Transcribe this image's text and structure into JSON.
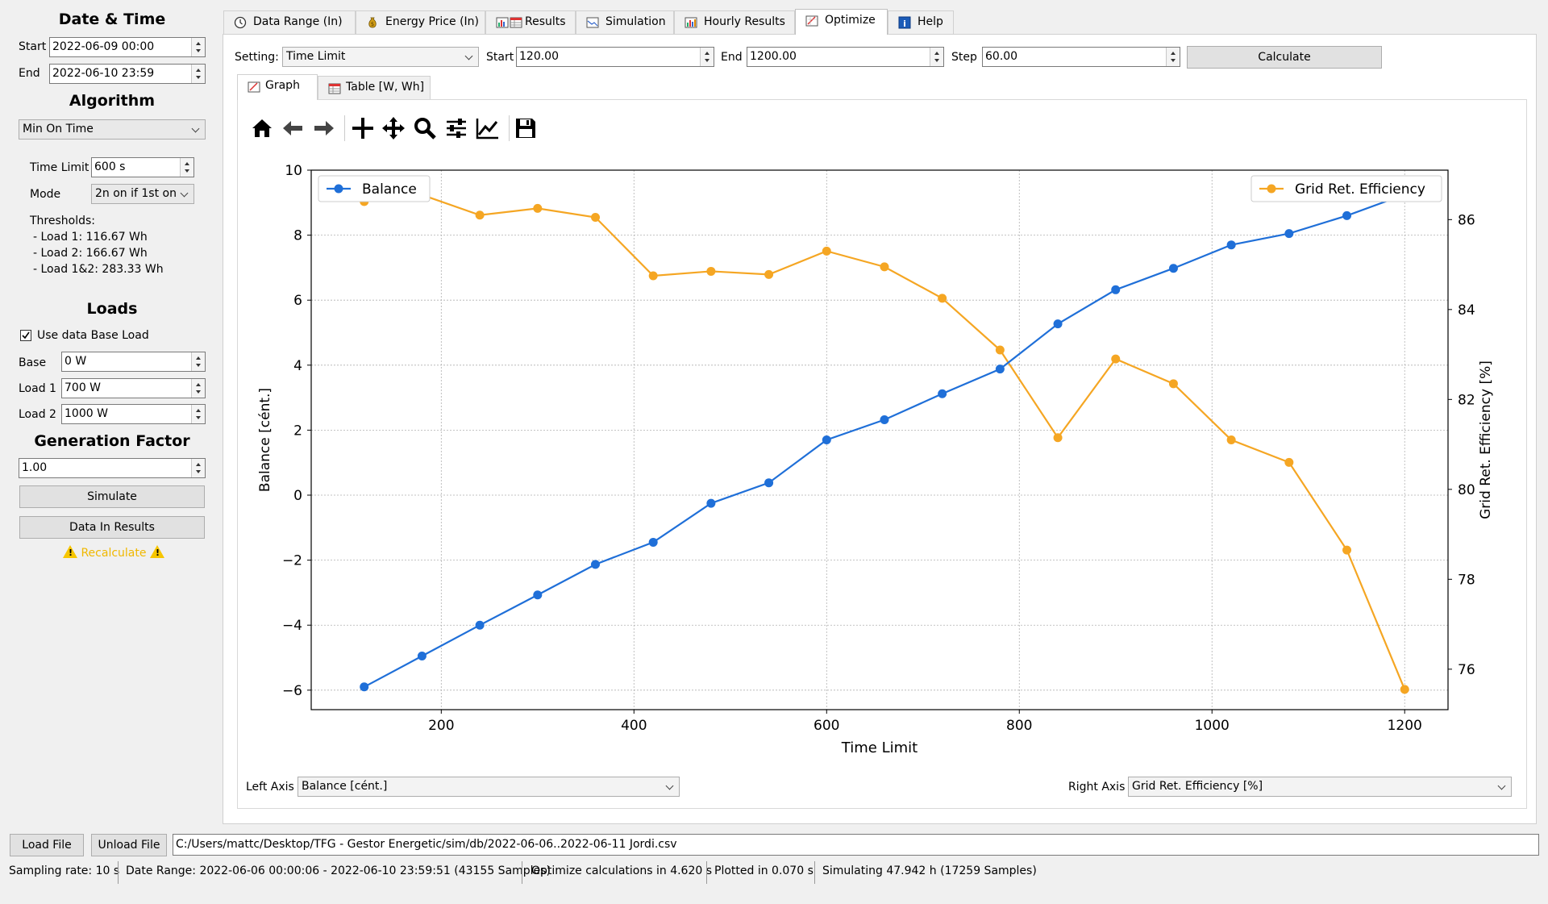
{
  "left": {
    "date_time_title": "Date & Time",
    "start_label": "Start",
    "start_value": "2022-06-09 00:00",
    "end_label": "End",
    "end_value": "2022-06-10 23:59",
    "algorithm_title": "Algorithm",
    "algorithm_value": "Min On Time",
    "time_limit_label": "Time Limit",
    "time_limit_value": "600 s",
    "mode_label": "Mode",
    "mode_value": "2n on if 1st on",
    "thresholds_label": "Thresholds:",
    "thresholds": [
      "- Load 1: 116.67 Wh",
      "- Load 2: 166.67 Wh",
      "- Load 1&2: 283.33 Wh"
    ],
    "loads_title": "Loads",
    "use_base_label": "Use data Base Load",
    "use_base_checked": true,
    "base_label": "Base",
    "base_value": "0 W",
    "load1_label": "Load 1",
    "load1_value": "700 W",
    "load2_label": "Load 2",
    "load2_value": "1000 W",
    "gen_factor_title": "Generation Factor",
    "gen_factor_value": "1.00",
    "simulate_button": "Simulate",
    "data_in_results_button": "Data In Results",
    "recalculate_warning": "Recalculate"
  },
  "tabs": [
    {
      "label": "Data Range (In)",
      "icon": "clock-icon"
    },
    {
      "label": "Energy Price (In)",
      "icon": "money-bag-icon"
    },
    {
      "label": "Results",
      "icon": "chart-table-icon"
    },
    {
      "label": "Simulation",
      "icon": "line-chart-icon"
    },
    {
      "label": "Hourly Results",
      "icon": "bar-chart-icon"
    },
    {
      "label": "Optimize",
      "icon": "graph-pen-icon",
      "active": true
    },
    {
      "label": "Help",
      "icon": "info-icon"
    }
  ],
  "optimize": {
    "setting_label": "Setting:",
    "setting_value": "Time Limit",
    "start_label": "Start",
    "start_value": "120.00",
    "end_label": "End",
    "end_value": "1200.00",
    "step_label": "Step",
    "step_value": "60.00",
    "calculate_button": "Calculate",
    "subtabs": [
      {
        "label": "Graph",
        "active": true
      },
      {
        "label": "Table [W, Wh]"
      }
    ],
    "left_axis_label": "Left Axis",
    "left_axis_value": "Balance [cént.]",
    "right_axis_label": "Right Axis",
    "right_axis_value": "Grid Ret. Efficiency [%]"
  },
  "colors": {
    "balance": "#1f6fd8",
    "efficiency": "#f5a623",
    "warning": "#f0b800"
  },
  "chart_data": {
    "type": "line",
    "title": "",
    "xlabel": "Time Limit",
    "ylabel": "Balance [cént.]",
    "y2label": "Grid Ret. Efficiency [%]",
    "x": [
      120,
      180,
      240,
      300,
      360,
      420,
      480,
      540,
      600,
      660,
      720,
      780,
      840,
      900,
      960,
      1020,
      1080,
      1140,
      1200
    ],
    "xlim": [
      65,
      1245
    ],
    "ylim": [
      -6.6,
      10
    ],
    "y2lim": [
      75.1,
      87.1
    ],
    "xticks": [
      200,
      400,
      600,
      800,
      1000,
      1200
    ],
    "xtick_labels": [
      "200",
      "400",
      "600",
      "800",
      "1000",
      "1200"
    ],
    "yticks": [
      -6,
      -4,
      -2,
      0,
      2,
      4,
      6,
      8,
      10
    ],
    "ytick_labels": [
      "−6",
      "−4",
      "−2",
      "0",
      "2",
      "4",
      "6",
      "8",
      "10"
    ],
    "y2ticks": [
      76,
      78,
      80,
      82,
      84,
      86
    ],
    "y2tick_labels": [
      "76",
      "78",
      "80",
      "82",
      "84",
      "86"
    ],
    "grid": true,
    "series": [
      {
        "name": "Balance",
        "axis": "left",
        "values": [
          -5.9,
          -4.95,
          -4.0,
          -3.07,
          -2.13,
          -1.45,
          -0.25,
          0.38,
          1.7,
          2.32,
          3.12,
          3.88,
          5.27,
          6.32,
          6.98,
          7.7,
          8.05,
          8.6,
          9.25
        ]
      },
      {
        "name": "Grid Ret. Efficiency",
        "axis": "right",
        "values": [
          86.4,
          86.55,
          86.1,
          86.25,
          86.05,
          84.75,
          84.85,
          84.78,
          85.3,
          84.95,
          84.25,
          83.1,
          81.15,
          82.9,
          82.35,
          81.1,
          80.6,
          78.65,
          75.55
        ]
      }
    ],
    "legend": {
      "balance": "top-left",
      "efficiency": "top-right"
    }
  },
  "toolbar": [
    {
      "name": "home-icon"
    },
    {
      "name": "back-arrow-icon"
    },
    {
      "name": "forward-arrow-icon"
    },
    {
      "name": "crosshair-icon"
    },
    {
      "name": "pan-icon"
    },
    {
      "name": "zoom-icon"
    },
    {
      "name": "sliders-icon"
    },
    {
      "name": "edit-curve-icon"
    },
    {
      "name": "save-icon"
    }
  ],
  "bottom": {
    "load_file_button": "Load File",
    "unload_file_button": "Unload File",
    "file_path": "C:/Users/mattc/Desktop/TFG - Gestor Energetic/sim/db/2022-06-06..2022-06-11 Jordi.csv"
  },
  "status": {
    "sampling_rate": "Sampling rate: 10 s",
    "date_range": "Date Range: 2022-06-06 00:00:06 - 2022-06-10 23:59:51 (43155 Samples)",
    "optimize_time": "Optimize calculations in 4.620 s",
    "plotted_time": "Plotted in 0.070 s",
    "simulating": "Simulating 47.942 h (17259 Samples)"
  }
}
